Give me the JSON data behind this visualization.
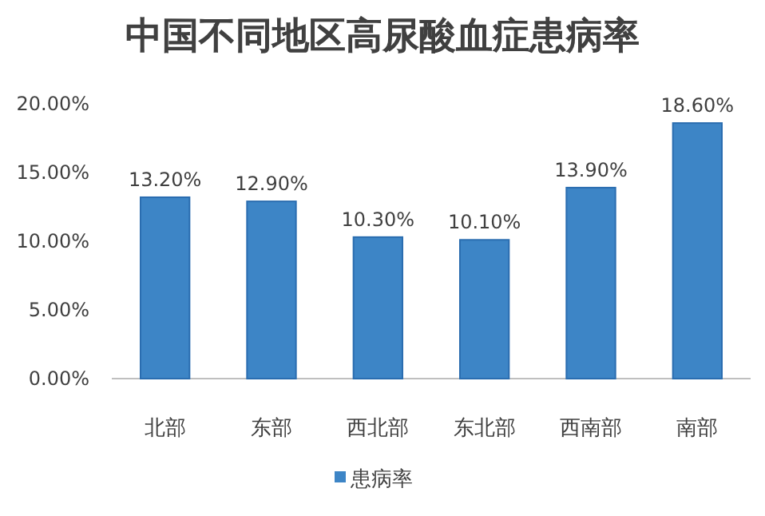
{
  "chart_data": {
    "type": "bar",
    "title": "中国不同地区高尿酸血症患病率",
    "categories": [
      "北部",
      "东部",
      "西北部",
      "东北部",
      "西南部",
      "南部"
    ],
    "series": [
      {
        "name": "患病率",
        "color": "#3d85c6",
        "values": [
          13.2,
          12.9,
          10.3,
          10.1,
          13.9,
          18.6
        ],
        "value_labels": [
          "13.20%",
          "12.90%",
          "10.30%",
          "10.10%",
          "13.90%",
          "18.60%"
        ]
      }
    ],
    "ylim": [
      0,
      20
    ],
    "yticks": [
      {
        "value": 0,
        "label": "0.00%"
      },
      {
        "value": 5,
        "label": "5.00%"
      },
      {
        "value": 10,
        "label": "10.00%"
      },
      {
        "value": 15,
        "label": "15.00%"
      },
      {
        "value": 20,
        "label": "20.00%"
      }
    ],
    "legend": "bottom"
  }
}
